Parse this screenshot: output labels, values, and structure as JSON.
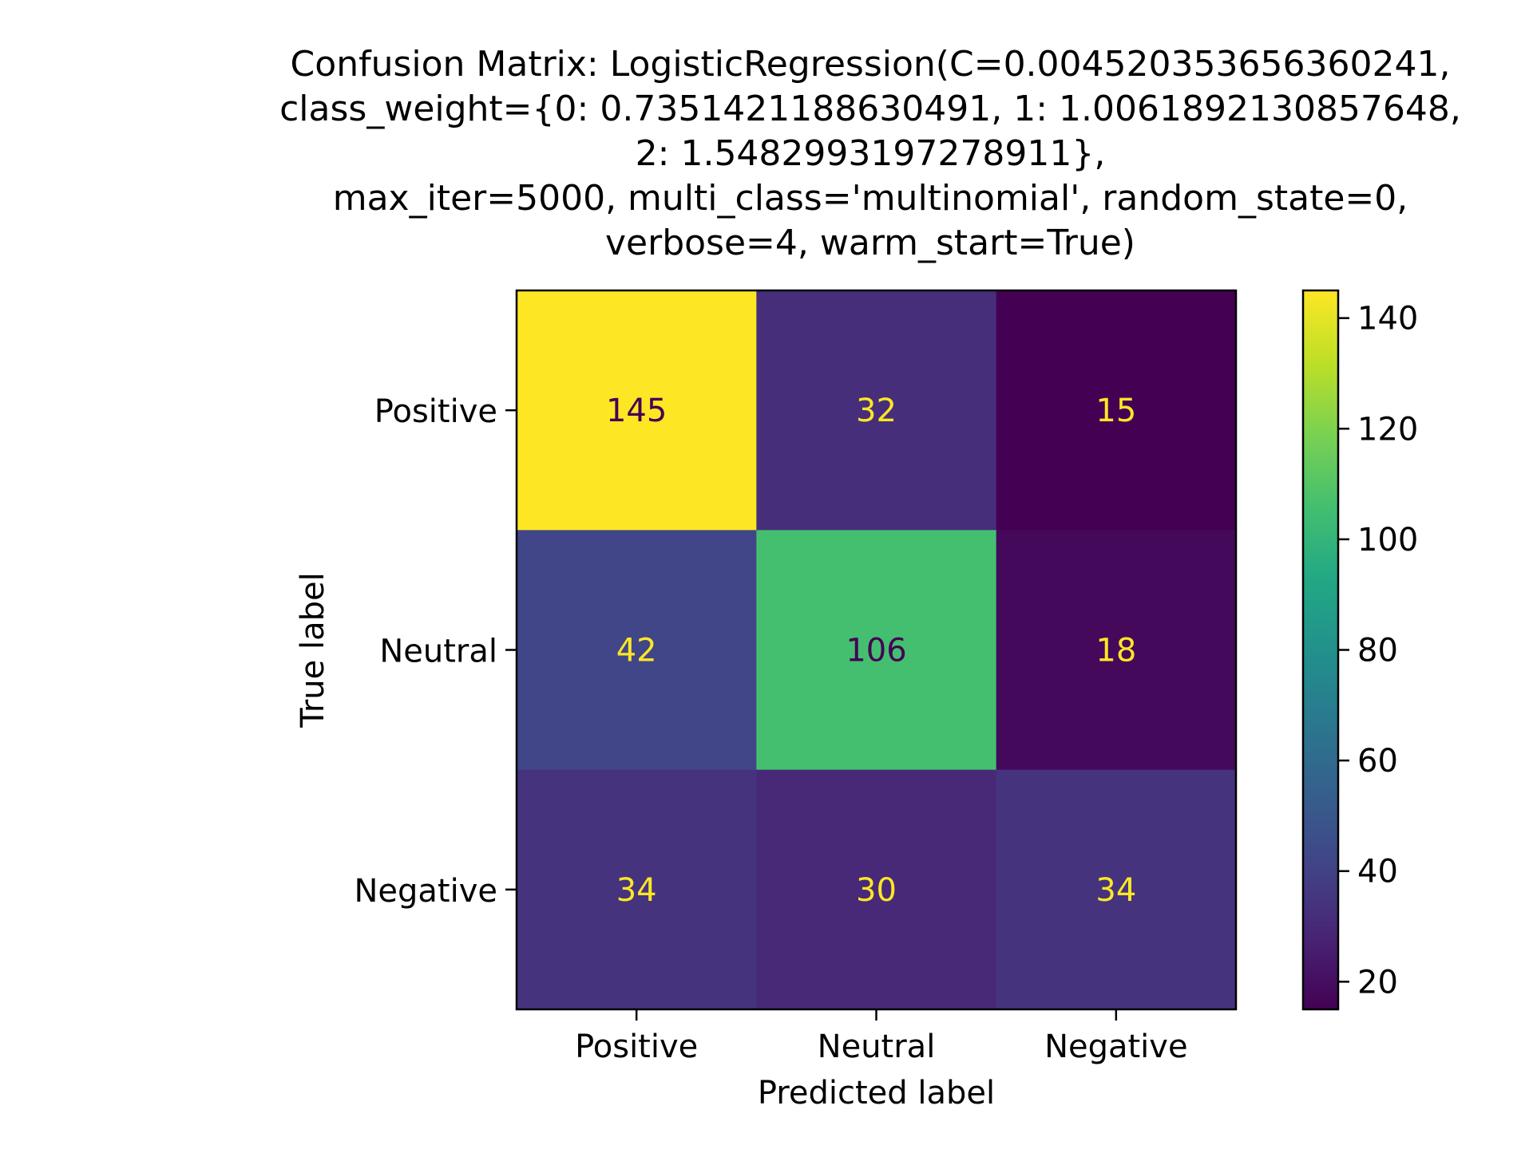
{
  "chart_data": {
    "type": "heatmap",
    "title_lines": [
      "Confusion Matrix: LogisticRegression(C=0.004520353656360241,",
      "class_weight={0: 0.7351421188630491, 1: 1.0061892130857648,",
      "2: 1.5482993197278911},",
      "max_iter=5000, multi_class='multinomial', random_state=0,",
      "verbose=4, warm_start=True)"
    ],
    "xlabel": "Predicted label",
    "ylabel": "True label",
    "x_categories": [
      "Positive",
      "Neutral",
      "Negative"
    ],
    "y_categories": [
      "Positive",
      "Neutral",
      "Negative"
    ],
    "values": [
      [
        145,
        32,
        15
      ],
      [
        42,
        106,
        18
      ],
      [
        34,
        30,
        34
      ]
    ],
    "colormap": "viridis",
    "colorbar": {
      "min": 15,
      "max": 145,
      "ticks": [
        20,
        40,
        60,
        80,
        100,
        120,
        140
      ]
    },
    "annotation_colors": {
      "on_dark": "#fde725",
      "on_light": "#440154"
    }
  }
}
